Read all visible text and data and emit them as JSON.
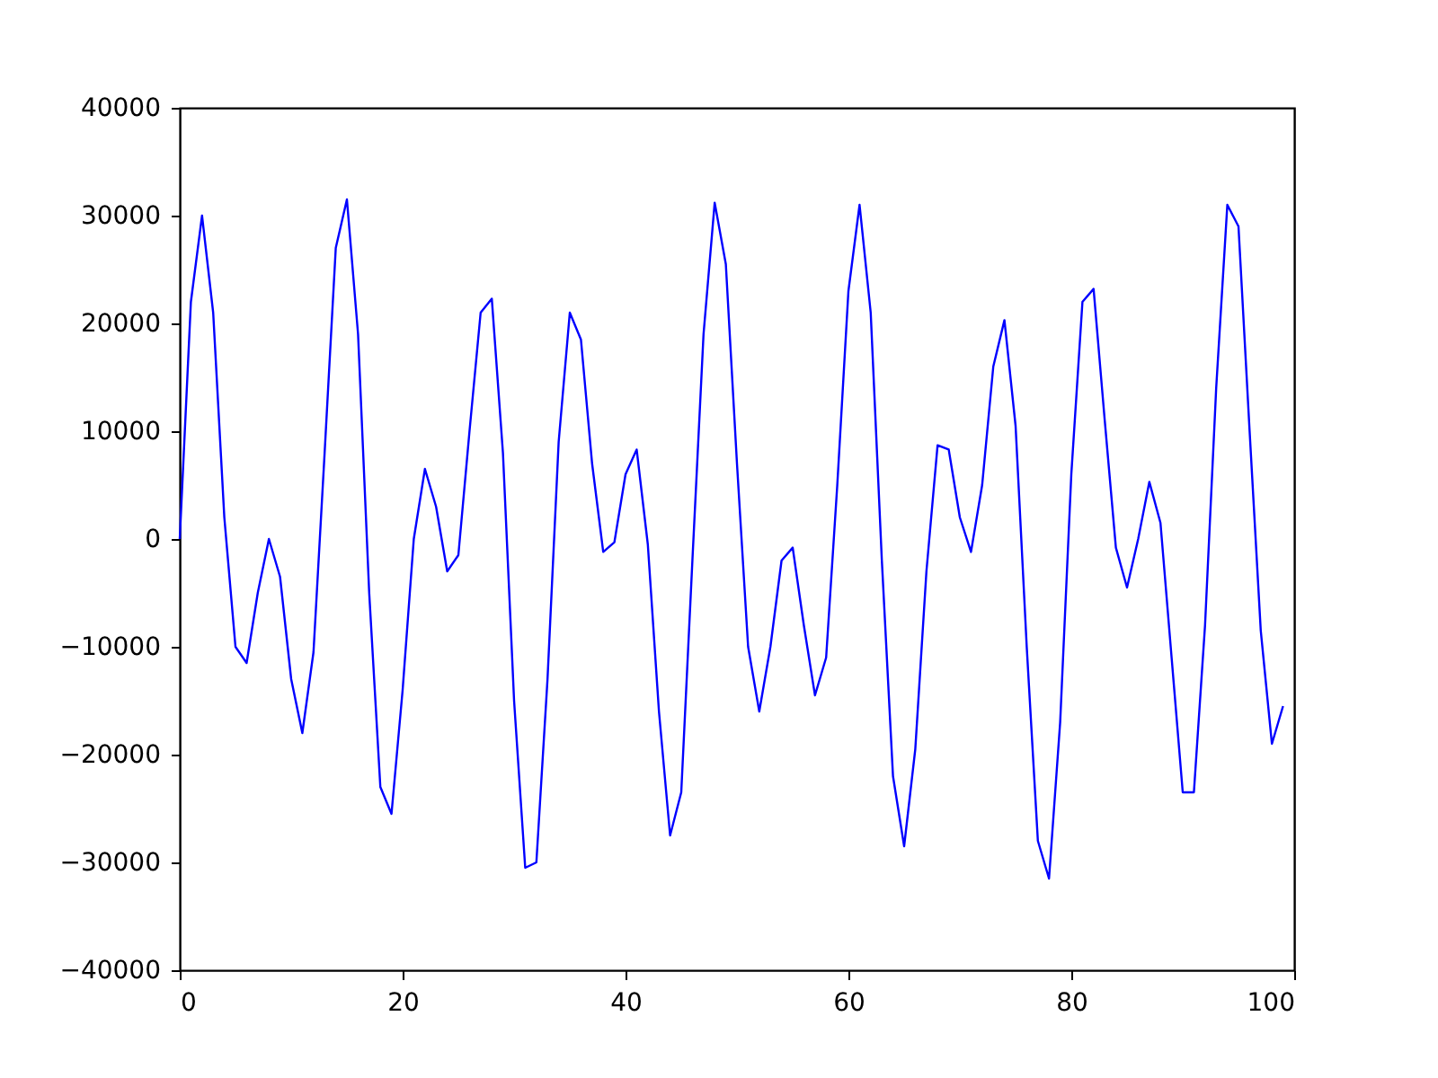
{
  "chart_data": {
    "type": "line",
    "x": [
      0,
      1,
      2,
      3,
      4,
      5,
      6,
      7,
      8,
      9,
      10,
      11,
      12,
      13,
      14,
      15,
      16,
      17,
      18,
      19,
      20,
      21,
      22,
      23,
      24,
      25,
      26,
      27,
      28,
      29,
      30,
      31,
      32,
      33,
      34,
      35,
      36,
      37,
      38,
      39,
      40,
      41,
      42,
      43,
      44,
      45,
      46,
      47,
      48,
      49,
      50,
      51,
      52,
      53,
      54,
      55,
      56,
      57,
      58,
      59,
      60,
      61,
      62,
      63,
      64,
      65,
      66,
      67,
      68,
      69,
      70,
      71,
      72,
      73,
      74,
      75,
      76,
      77,
      78,
      79,
      80,
      81,
      82,
      83,
      84,
      85,
      86,
      87,
      88,
      89,
      90,
      91,
      92,
      93,
      94,
      95,
      96,
      97,
      98,
      99
    ],
    "series": [
      {
        "color": "#0000ff",
        "values": [
          0,
          22000,
          30000,
          21000,
          2000,
          -10000,
          -11500,
          -5000,
          0,
          -3500,
          -13000,
          -18000,
          -10500,
          8000,
          27000,
          31500,
          19000,
          -5000,
          -23000,
          -25500,
          -14000,
          0,
          6500,
          3000,
          -3000,
          -1500,
          10000,
          21000,
          22300,
          8000,
          -15000,
          -30500,
          -30000,
          -13000,
          9000,
          21000,
          18500,
          7000,
          -1200,
          -300,
          6000,
          8300,
          -500,
          -16000,
          -27500,
          -23500,
          -2000,
          19000,
          31200,
          25500,
          7000,
          -10000,
          -16000,
          -10000,
          -2000,
          -800,
          -8000,
          -14500,
          -11000,
          5000,
          23000,
          31000,
          21000,
          -2000,
          -22000,
          -28500,
          -19500,
          -3000,
          8700,
          8300,
          2000,
          -1200,
          5000,
          16000,
          20300,
          10500,
          -10000,
          -28000,
          -31500,
          -17000,
          6000,
          22000,
          23200,
          11000,
          -800,
          -4500,
          0,
          5300,
          1500,
          -11000,
          -23500,
          -23500,
          -8000,
          14000,
          31000,
          29000,
          10000,
          -8500,
          -19000,
          -15500
        ]
      }
    ],
    "xlim": [
      0,
      100
    ],
    "xticks": [
      0,
      20,
      40,
      60,
      80,
      100
    ],
    "ylim": [
      -40000,
      40000
    ],
    "yticks": [
      -40000,
      -30000,
      -20000,
      -10000,
      0,
      10000,
      20000,
      30000,
      40000
    ],
    "grid": false,
    "legend": false
  }
}
